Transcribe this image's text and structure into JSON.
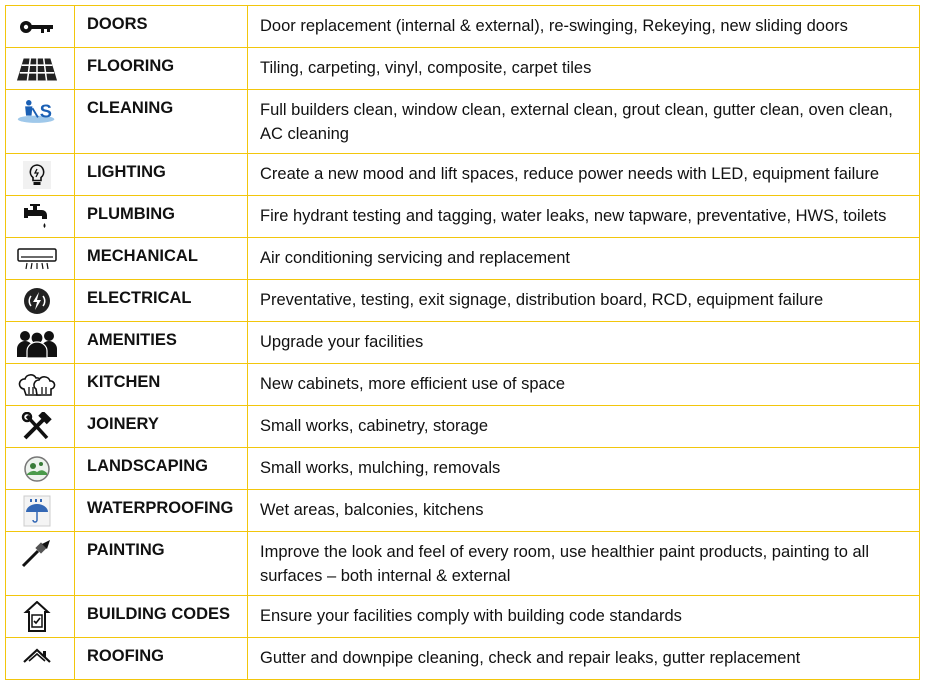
{
  "rows": [
    {
      "icon": "key-icon",
      "name": "DOORS",
      "desc": "Door replacement (internal & external), re-swinging, Rekeying, new sliding doors"
    },
    {
      "icon": "floor-tiles-icon",
      "name": "FLOORING",
      "desc": "Tiling, carpeting, vinyl, composite, carpet tiles"
    },
    {
      "icon": "cleaner-icon",
      "name": "CLEANING",
      "desc": "Full builders clean, window clean, external clean, grout clean, gutter clean, oven clean, AC cleaning"
    },
    {
      "icon": "lightbulb-icon",
      "name": "LIGHTING",
      "desc": "Create a new mood and lift spaces, reduce power needs with LED, equipment failure"
    },
    {
      "icon": "tap-icon",
      "name": "PLUMBING",
      "desc": "Fire hydrant testing and tagging, water leaks, new tapware, preventative, HWS, toilets"
    },
    {
      "icon": "air-conditioner-icon",
      "name": "MECHANICAL",
      "desc": "Air conditioning servicing and replacement"
    },
    {
      "icon": "lightning-icon",
      "name": "ELECTRICAL",
      "desc": "Preventative, testing, exit signage, distribution board, RCD, equipment failure"
    },
    {
      "icon": "people-group-icon",
      "name": "AMENITIES",
      "desc": "Upgrade your facilities"
    },
    {
      "icon": "chef-hats-icon",
      "name": "KITCHEN",
      "desc": "New cabinets, more efficient use of space"
    },
    {
      "icon": "hammer-wrench-icon",
      "name": "JOINERY",
      "desc": "Small works, cabinetry, storage"
    },
    {
      "icon": "landscape-icon",
      "name": "LANDSCAPING",
      "desc": "Small works, mulching, removals"
    },
    {
      "icon": "umbrella-icon",
      "name": "WATERPROOFING",
      "desc": "Wet areas, balconies, kitchens"
    },
    {
      "icon": "paintbrush-icon",
      "name": "PAINTING",
      "desc": "Improve the look and feel of every room, use healthier paint products, painting to all surfaces – both internal & external"
    },
    {
      "icon": "building-code-icon",
      "name": "BUILDING CODES",
      "desc": "Ensure your facilities comply with building code standards"
    },
    {
      "icon": "roof-icon",
      "name": "ROOFING",
      "desc": "Gutter and downpipe cleaning, check and repair leaks, gutter replacement"
    }
  ]
}
